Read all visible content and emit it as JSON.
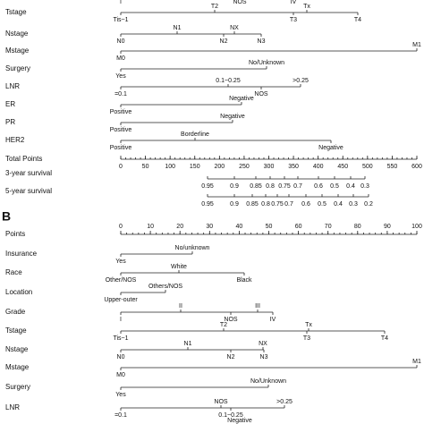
{
  "panel_a": {
    "grade_fragment": [
      "I",
      "NOS",
      "IV"
    ],
    "rows": [
      {
        "label": "Tstage",
        "ticks": [
          "Tis~1",
          "T2",
          "T3",
          "Tx",
          "T4"
        ]
      },
      {
        "label": "Nstage",
        "ticks": [
          "N0",
          "N1",
          "N2",
          "NX",
          "N3"
        ]
      },
      {
        "label": "Mstage",
        "ticks": [
          "M0",
          "M1"
        ]
      },
      {
        "label": "Surgery",
        "ticks": [
          "Yes",
          "No/Unknown"
        ]
      },
      {
        "label": "LNR",
        "ticks": [
          "=0.1",
          "0.1~0.25",
          "NOS",
          ">0.25"
        ]
      },
      {
        "label": "ER",
        "ticks": [
          "Positive",
          "Negative"
        ]
      },
      {
        "label": "PR",
        "ticks": [
          "Positive",
          "Negative"
        ]
      },
      {
        "label": "HER2",
        "ticks": [
          "Positive",
          "Borderline",
          "Negative"
        ]
      }
    ],
    "total_points": {
      "label": "Total Points",
      "ticks": [
        0,
        50,
        100,
        150,
        200,
        250,
        300,
        350,
        400,
        450,
        500,
        550,
        600
      ]
    },
    "survival": [
      {
        "label": "3-year survival",
        "ticks": [
          "0.95",
          "0.9",
          "0.85",
          "0.8",
          "0.75",
          "0.7",
          "0.6",
          "0.5",
          "0.4",
          "0.3"
        ]
      },
      {
        "label": "5-year survival",
        "ticks": [
          "0.95",
          "0.9",
          "0.85",
          "0.8",
          "0.75",
          "0.7",
          "0.6",
          "0.5",
          "0.4",
          "0.3",
          "0.2"
        ]
      }
    ]
  },
  "panel_b": {
    "label": "B",
    "points": {
      "label": "Points",
      "ticks": [
        0,
        10,
        20,
        30,
        40,
        50,
        60,
        70,
        80,
        90,
        100
      ]
    },
    "rows": [
      {
        "label": "Insurance",
        "ticks": [
          "Yes",
          "No/unknown"
        ]
      },
      {
        "label": "Race",
        "ticks": [
          "Other/NOS",
          "White",
          "Black"
        ]
      },
      {
        "label": "Location",
        "ticks": [
          "Upper-outer",
          "Others/NOS"
        ]
      },
      {
        "label": "Grade",
        "ticks": [
          "I",
          "II",
          "NOS",
          "III",
          "IV"
        ]
      },
      {
        "label": "Tstage",
        "ticks": [
          "Tis~1",
          "T2",
          "T3",
          "Tx",
          "T4"
        ]
      },
      {
        "label": "Nstage",
        "ticks": [
          "N0",
          "N1",
          "N2",
          "NX",
          "N3"
        ]
      },
      {
        "label": "Mstage",
        "ticks": [
          "M0",
          "M1"
        ]
      },
      {
        "label": "Surgery",
        "ticks": [
          "Yes",
          "No/Unknown"
        ]
      },
      {
        "label": "LNR",
        "ticks": [
          "=0.1",
          "NOS",
          "0.1~0.25",
          ">0.25"
        ]
      }
    ],
    "fragment": [
      "Negative"
    ]
  }
}
